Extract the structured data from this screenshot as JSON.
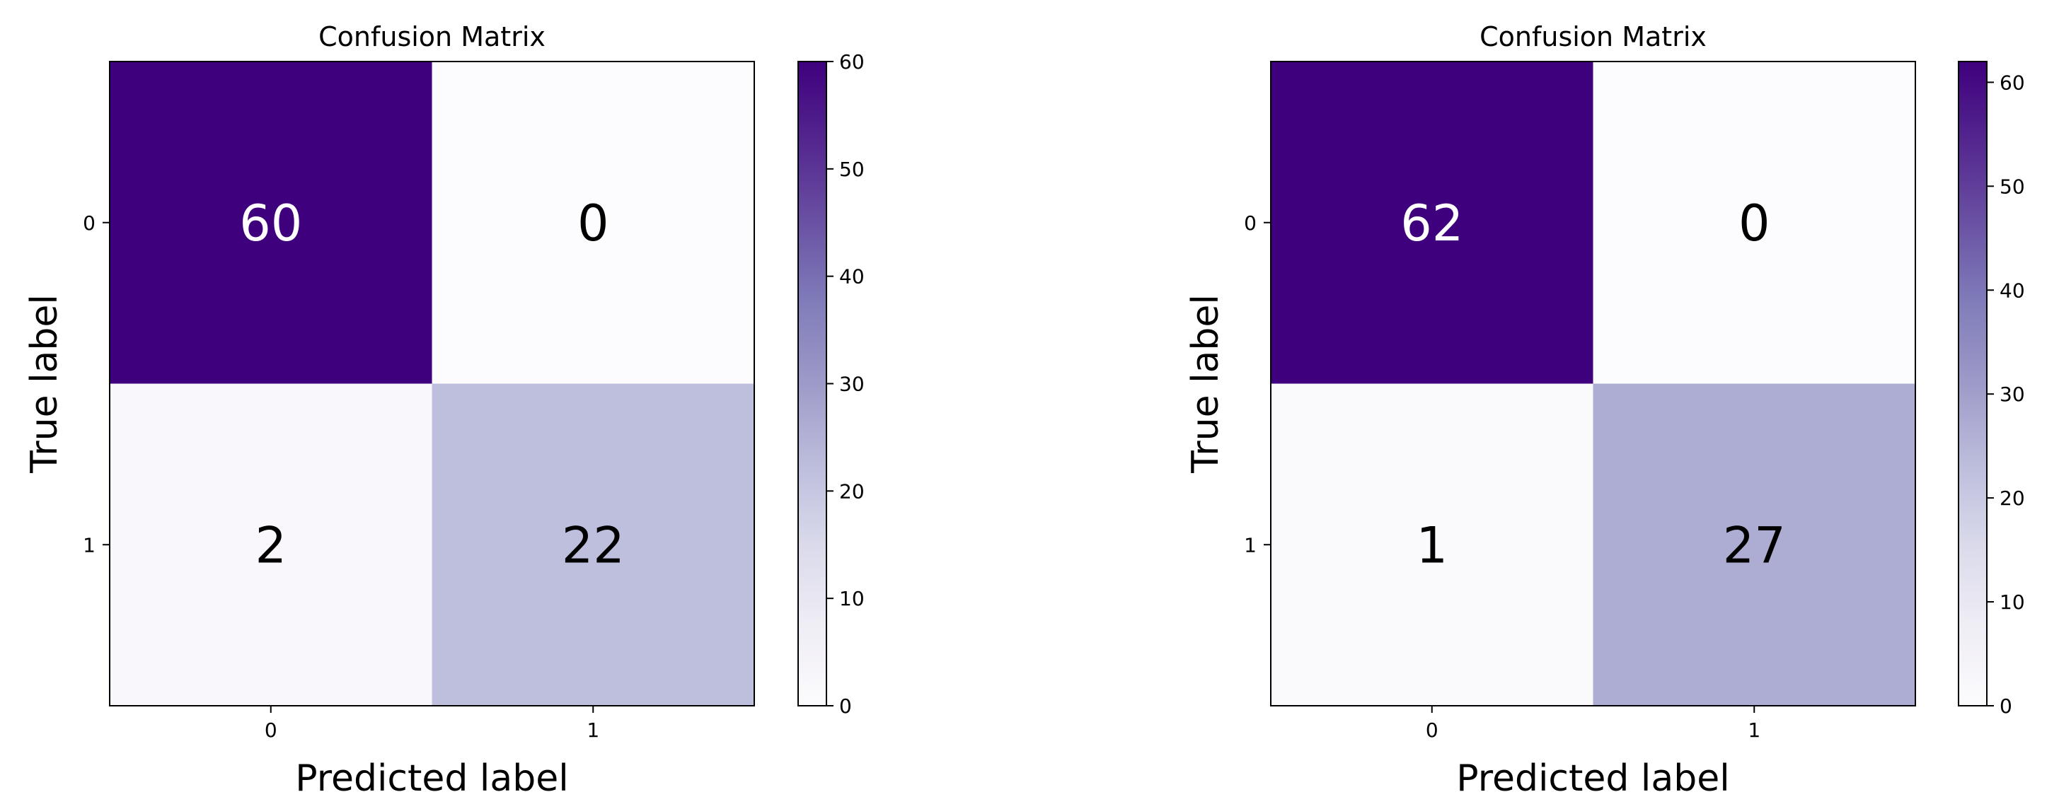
{
  "chart_data": [
    {
      "type": "heatmap",
      "title": "Confusion Matrix",
      "xlabel": "Predicted label",
      "ylabel": "True label",
      "x_tick_labels": [
        "0",
        "1"
      ],
      "y_tick_labels": [
        "0",
        "1"
      ],
      "matrix": [
        [
          60,
          0
        ],
        [
          2,
          22
        ]
      ],
      "colormap": "Purples",
      "colorbar": {
        "min": 0,
        "max": 60,
        "ticks": [
          "0",
          "10",
          "20",
          "30",
          "40",
          "50",
          "60"
        ]
      }
    },
    {
      "type": "heatmap",
      "title": "Confusion Matrix",
      "xlabel": "Predicted label",
      "ylabel": "True label",
      "x_tick_labels": [
        "0",
        "1"
      ],
      "y_tick_labels": [
        "0",
        "1"
      ],
      "matrix": [
        [
          62,
          0
        ],
        [
          1,
          27
        ]
      ],
      "colormap": "Purples",
      "colorbar": {
        "min": 0,
        "max": 62,
        "ticks": [
          "0",
          "10",
          "20",
          "30",
          "40",
          "50",
          "60"
        ]
      }
    }
  ],
  "colors": {
    "cmap_low": "#fcfbfd",
    "cmap_high": "#3f007d",
    "text_dark": "#000000",
    "text_light": "#ffffff"
  }
}
